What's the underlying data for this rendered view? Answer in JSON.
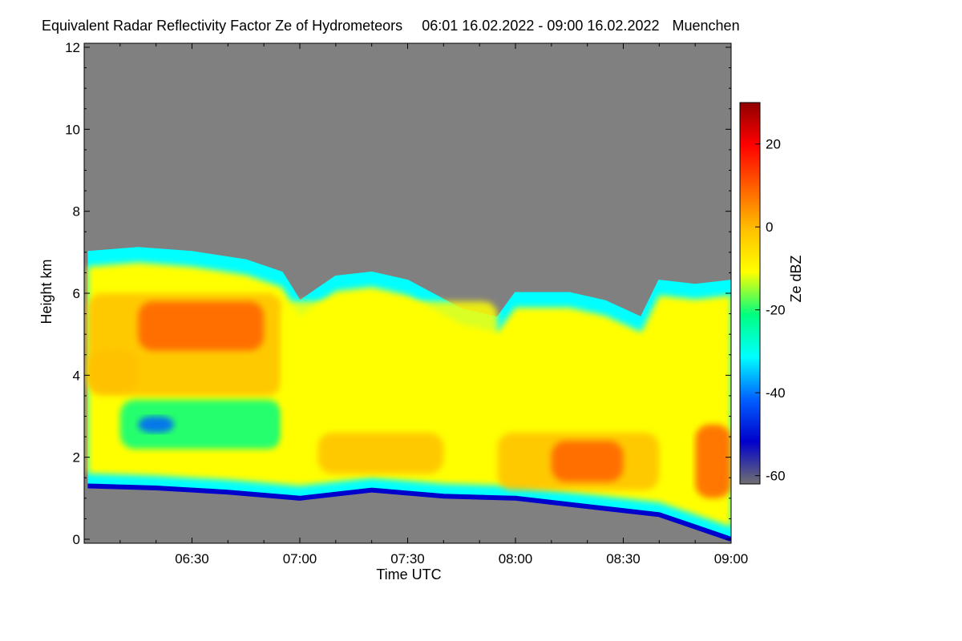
{
  "chart_data": {
    "type": "heatmap",
    "title": "Equivalent Radar Reflectivity Factor Ze of Hydrometeors",
    "time_range": "06:01 16.02.2022 - 09:00 16.02.2022",
    "location": "Muenchen",
    "xlabel": "Time UTC",
    "ylabel": "Height km",
    "x_ticks": [
      "06:30",
      "07:00",
      "07:30",
      "08:00",
      "08:30",
      "09:00"
    ],
    "x_range": [
      "06:01",
      "09:00"
    ],
    "y_ticks": [
      "0",
      "2",
      "4",
      "6",
      "8",
      "10",
      "12"
    ],
    "y_range": [
      0,
      12
    ],
    "colorbar": {
      "label": "Ze dBZ",
      "ticks": [
        "20",
        "0",
        "-20",
        "-40",
        "-60"
      ],
      "range": [
        -62,
        30
      ],
      "colormap": [
        "#707070",
        "#0000cc",
        "#0060ff",
        "#00ffff",
        "#00ff80",
        "#ffff00",
        "#ffc000",
        "#ff6000",
        "#ff0000",
        "#900000"
      ]
    },
    "background_color": "#808080",
    "cloud_top_km": [
      {
        "t": "06:01",
        "h": 7.0
      },
      {
        "t": "06:15",
        "h": 7.1
      },
      {
        "t": "06:30",
        "h": 7.0
      },
      {
        "t": "06:45",
        "h": 6.8
      },
      {
        "t": "06:55",
        "h": 6.5
      },
      {
        "t": "07:00",
        "h": 5.8
      },
      {
        "t": "07:10",
        "h": 6.4
      },
      {
        "t": "07:20",
        "h": 6.5
      },
      {
        "t": "07:30",
        "h": 6.3
      },
      {
        "t": "07:45",
        "h": 5.6
      },
      {
        "t": "07:55",
        "h": 5.4
      },
      {
        "t": "08:00",
        "h": 6.0
      },
      {
        "t": "08:15",
        "h": 6.0
      },
      {
        "t": "08:25",
        "h": 5.8
      },
      {
        "t": "08:35",
        "h": 5.4
      },
      {
        "t": "08:40",
        "h": 6.3
      },
      {
        "t": "08:50",
        "h": 6.2
      },
      {
        "t": "09:00",
        "h": 6.3
      }
    ],
    "cloud_base_km": [
      {
        "t": "06:01",
        "h": 1.3
      },
      {
        "t": "06:20",
        "h": 1.25
      },
      {
        "t": "06:40",
        "h": 1.15
      },
      {
        "t": "07:00",
        "h": 1.0
      },
      {
        "t": "07:20",
        "h": 1.2
      },
      {
        "t": "07:40",
        "h": 1.05
      },
      {
        "t": "08:00",
        "h": 1.0
      },
      {
        "t": "08:20",
        "h": 0.8
      },
      {
        "t": "08:40",
        "h": 0.6
      },
      {
        "t": "08:50",
        "h": 0.3
      },
      {
        "t": "09:00",
        "h": 0.0
      }
    ],
    "reflectivity_features": [
      {
        "t0": "06:01",
        "t1": "06:55",
        "h0": 3.5,
        "h1": 6.0,
        "ze": -2
      },
      {
        "t0": "06:15",
        "t1": "06:50",
        "h0": 4.6,
        "h1": 5.8,
        "ze": 5
      },
      {
        "t0": "06:01",
        "t1": "06:15",
        "h0": 3.6,
        "h1": 4.6,
        "ze": 3
      },
      {
        "t0": "06:10",
        "t1": "06:55",
        "h0": 2.2,
        "h1": 3.4,
        "ze": -22
      },
      {
        "t0": "06:15",
        "t1": "06:25",
        "h0": 2.6,
        "h1": 3.0,
        "ze": -42
      },
      {
        "t0": "06:55",
        "t1": "07:55",
        "h0": 1.6,
        "h1": 5.8,
        "ze": -8
      },
      {
        "t0": "07:05",
        "t1": "07:40",
        "h0": 1.6,
        "h1": 2.6,
        "ze": -2
      },
      {
        "t0": "07:55",
        "t1": "08:40",
        "h0": 1.2,
        "h1": 2.6,
        "ze": 2
      },
      {
        "t0": "08:10",
        "t1": "08:30",
        "h0": 1.4,
        "h1": 2.4,
        "ze": 8
      },
      {
        "t0": "08:50",
        "t1": "09:00",
        "h0": 1.0,
        "h1": 2.8,
        "ze": 10
      }
    ]
  }
}
